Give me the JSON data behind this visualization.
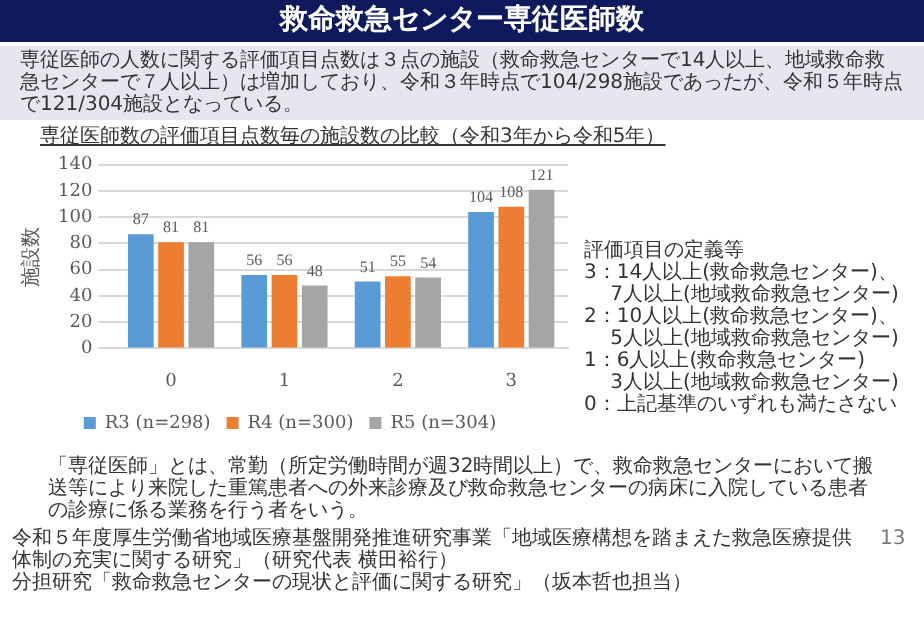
{
  "chart_data": {
    "type": "bar",
    "title": "救命救急センター専従医師数",
    "subtitle": "専従医師の人数に関する評価項目点数は３点の施設（救命救急センターで14人以上、地域救命救急センターで７人以上）は増加しており、令和３年時点で104/298施設であったが、令和５年時点で121/304施設となっている。",
    "ylabel": "施設数",
    "categories": [
      "0",
      "1",
      "2",
      "3"
    ],
    "series": [
      {
        "name": "R3 (n=298)",
        "color": "#5b9bd5",
        "values": [
          87,
          56,
          51,
          104
        ]
      },
      {
        "name": "R4 (n=300)",
        "color": "#ed7d31",
        "values": [
          81,
          56,
          55,
          108
        ]
      },
      {
        "name": "R5 (n=304)",
        "color": "#a5a5a5",
        "values": [
          81,
          48,
          54,
          121
        ]
      }
    ],
    "ylim": [
      0,
      140
    ],
    "yticks": [
      0,
      20,
      40,
      60,
      80,
      100,
      120,
      140
    ],
    "grid": "y",
    "legend": "bottom",
    "data_labels": true,
    "annotations": [
      "専従医師数の評価項目点数毎の施設数の比較（令和3年から令和5年）",
      "評価項目の定義等\n3：14人以上(救命救急センター)、\n　 7人以上(地域救命救急センター)\n2：10人以上(救命救急センター)、\n　 5人以上(地域救命救急センター)\n1：6人以上(救命救急センター)\n　 3人以上(地域救命救急センター)\n0：上記基準のいずれも満たさない",
      "「専従医師」とは、常勤（所定労働時間が週32時間以上）で、救命救急センターにおいて搬送等により来院した重篤患者への外来診療及び救命救急センターの病床に入院している患者の診療に係る業務を行う者をいう。",
      "令和５年度厚生労働省地域医療基盤開発推進研究事業「地域医療構想を踏まえた救急医療提供体制の充実に関する研究」（研究代表 横田裕行）",
      "分担研究「救命救急センターの現状と評価に関する研究」（坂本哲也担当）",
      "13"
    ]
  }
}
